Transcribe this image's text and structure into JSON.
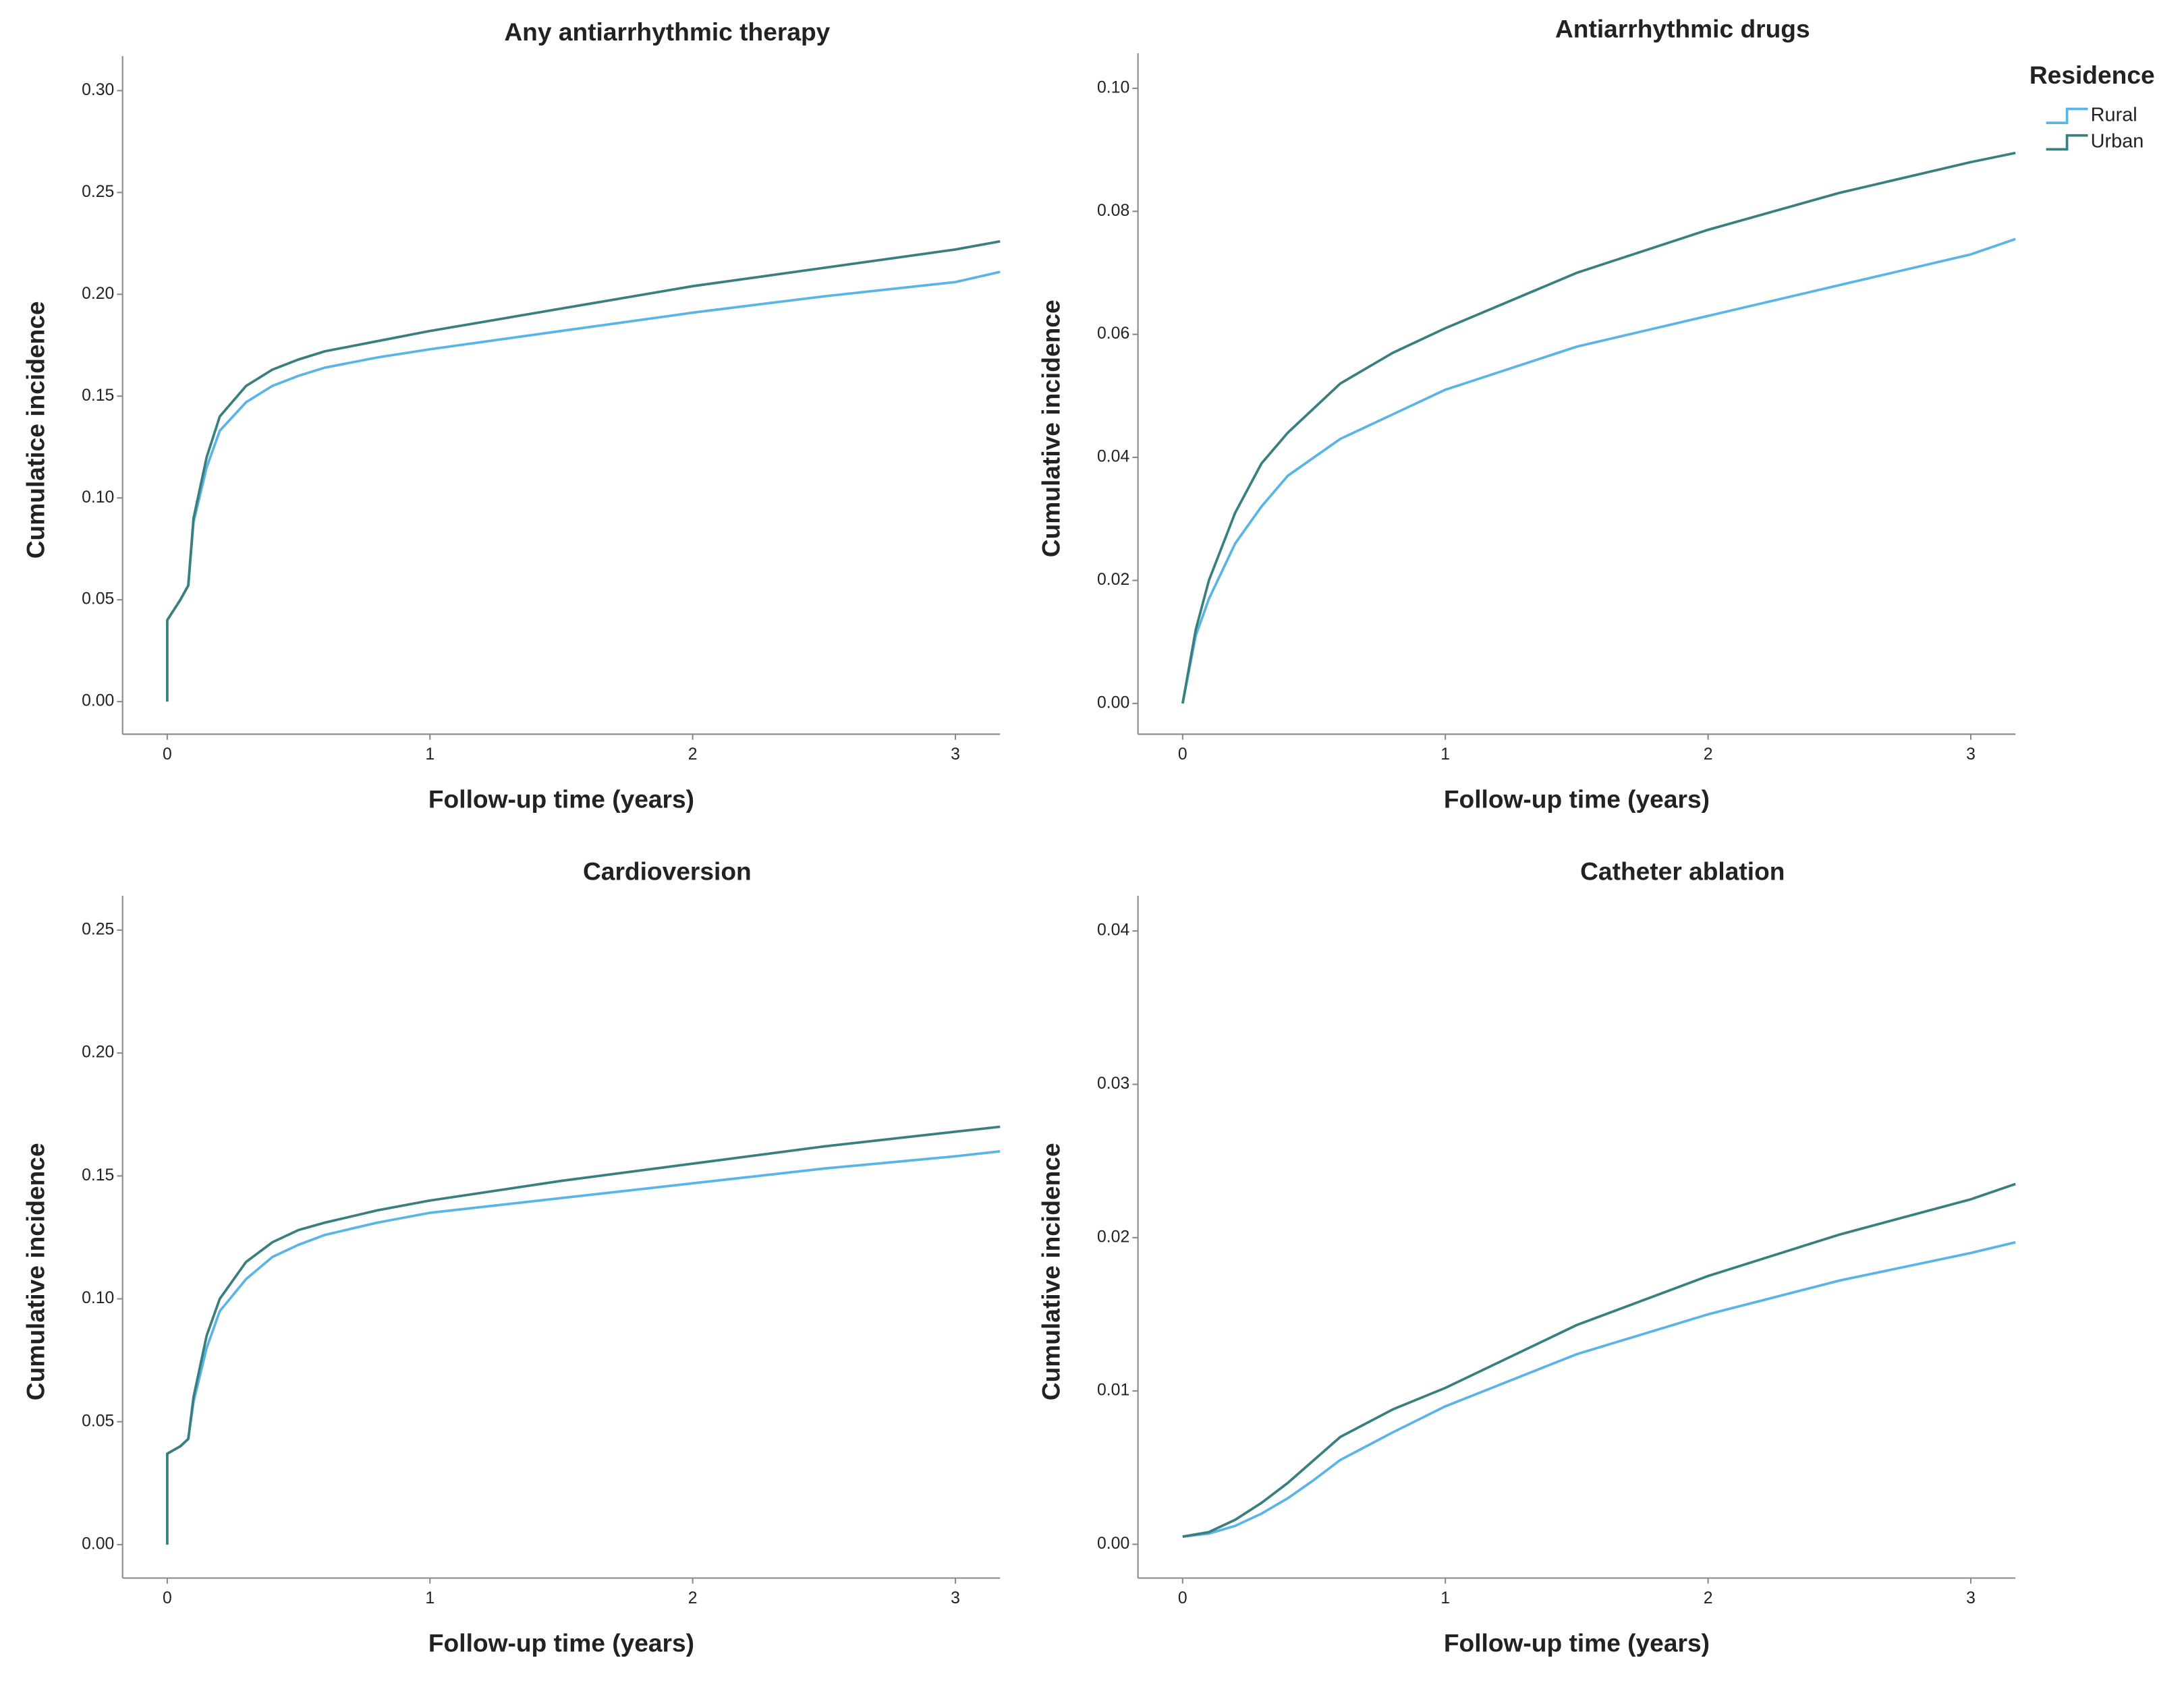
{
  "chart_data": [
    {
      "type": "line",
      "title": "Any antiarrhythmic therapy",
      "x_label": "Follow-up time (years)",
      "y_label": "Cumulatice incidence",
      "x": [
        0,
        0,
        0.05,
        0.08,
        0.1,
        0.15,
        0.2,
        0.3,
        0.4,
        0.5,
        0.6,
        0.8,
        1,
        1.5,
        2,
        2.5,
        3,
        3.17
      ],
      "series": [
        {
          "name": "Rural",
          "color": "#5ab4e5",
          "values": [
            0,
            0.04,
            0.05,
            0.057,
            0.088,
            0.115,
            0.133,
            0.147,
            0.155,
            0.16,
            0.164,
            0.169,
            0.173,
            0.182,
            0.191,
            0.199,
            0.206,
            0.211
          ]
        },
        {
          "name": "Urban",
          "color": "#3a7f80",
          "values": [
            0,
            0.04,
            0.05,
            0.057,
            0.09,
            0.12,
            0.14,
            0.155,
            0.163,
            0.168,
            0.172,
            0.177,
            0.182,
            0.193,
            0.204,
            0.213,
            0.222,
            0.226
          ]
        }
      ],
      "xlim": [
        -0.17,
        3.17
      ],
      "xticks": [
        0,
        1,
        2,
        3
      ],
      "ylim": [
        -0.016,
        0.317
      ],
      "yticks": [
        {
          "value": 0,
          "label": "0.00"
        },
        {
          "value": 0.05,
          "label": "0.05"
        },
        {
          "value": 0.1,
          "label": "0.10"
        },
        {
          "value": 0.15,
          "label": "0.15"
        },
        {
          "value": 0.2,
          "label": "0.20"
        },
        {
          "value": 0.25,
          "label": "0.25"
        },
        {
          "value": 0.3,
          "label": "0.30"
        }
      ]
    },
    {
      "type": "line",
      "title": "Antiarrhythmic drugs",
      "x_label": "Follow-up time (years)",
      "y_label": "Cumulative incidence",
      "x": [
        0,
        0.05,
        0.1,
        0.2,
        0.3,
        0.4,
        0.5,
        0.6,
        0.8,
        1,
        1.5,
        2,
        2.5,
        3,
        3.17
      ],
      "series": [
        {
          "name": "Rural",
          "color": "#5ab4e5",
          "values": [
            0,
            0.011,
            0.017,
            0.026,
            0.032,
            0.037,
            0.04,
            0.043,
            0.047,
            0.051,
            0.058,
            0.063,
            0.068,
            0.073,
            0.0755
          ]
        },
        {
          "name": "Urban",
          "color": "#3a7f80",
          "values": [
            0,
            0.012,
            0.02,
            0.031,
            0.039,
            0.044,
            0.048,
            0.052,
            0.057,
            0.061,
            0.07,
            0.077,
            0.083,
            0.088,
            0.0895
          ]
        }
      ],
      "xlim": [
        -0.17,
        3.17
      ],
      "xticks": [
        0,
        1,
        2,
        3
      ],
      "ylim": [
        -0.005,
        0.1057
      ],
      "yticks": [
        {
          "value": 0,
          "label": "0.00"
        },
        {
          "value": 0.02,
          "label": "0.02"
        },
        {
          "value": 0.04,
          "label": "0.04"
        },
        {
          "value": 0.06,
          "label": "0.06"
        },
        {
          "value": 0.08,
          "label": "0.08"
        },
        {
          "value": 0.1,
          "label": "0.10"
        }
      ],
      "legend": "right",
      "legend_title": "Residence"
    },
    {
      "type": "line",
      "title": "Cardioversion",
      "x_label": "Follow-up time (years)",
      "y_label": "Cumulative incidence",
      "x": [
        0,
        0,
        0.05,
        0.08,
        0.1,
        0.15,
        0.2,
        0.3,
        0.4,
        0.5,
        0.6,
        0.8,
        1,
        1.5,
        2,
        2.5,
        3,
        3.17
      ],
      "series": [
        {
          "name": "Rural",
          "color": "#5ab4e5",
          "values": [
            0,
            0.037,
            0.04,
            0.043,
            0.058,
            0.08,
            0.095,
            0.108,
            0.117,
            0.122,
            0.126,
            0.131,
            0.135,
            0.141,
            0.147,
            0.153,
            0.158,
            0.16
          ]
        },
        {
          "name": "Urban",
          "color": "#3a7f80",
          "values": [
            0,
            0.037,
            0.04,
            0.043,
            0.06,
            0.085,
            0.1,
            0.115,
            0.123,
            0.128,
            0.131,
            0.136,
            0.14,
            0.148,
            0.155,
            0.162,
            0.168,
            0.17
          ]
        }
      ],
      "xlim": [
        -0.17,
        3.17
      ],
      "xticks": [
        0,
        1,
        2,
        3
      ],
      "ylim": [
        -0.0136,
        0.264
      ],
      "yticks": [
        {
          "value": 0,
          "label": "0.00"
        },
        {
          "value": 0.05,
          "label": "0.05"
        },
        {
          "value": 0.1,
          "label": "0.10"
        },
        {
          "value": 0.15,
          "label": "0.15"
        },
        {
          "value": 0.2,
          "label": "0.20"
        },
        {
          "value": 0.25,
          "label": "0.25"
        }
      ]
    },
    {
      "type": "line",
      "title": "Catheter ablation",
      "x_label": "Follow-up time (years)",
      "y_label": "Cumulative incidence",
      "x": [
        0,
        0.1,
        0.2,
        0.3,
        0.4,
        0.5,
        0.6,
        0.8,
        1,
        1.5,
        2,
        2.5,
        3,
        3.17
      ],
      "series": [
        {
          "name": "Rural",
          "color": "#5ab4e5",
          "values": [
            0.0005,
            0.0007,
            0.0012,
            0.002,
            0.003,
            0.0042,
            0.0055,
            0.0073,
            0.009,
            0.0124,
            0.015,
            0.0172,
            0.019,
            0.0197
          ]
        },
        {
          "name": "Urban",
          "color": "#3a7f80",
          "values": [
            0.0005,
            0.0008,
            0.0016,
            0.0027,
            0.004,
            0.0055,
            0.007,
            0.0088,
            0.0102,
            0.0143,
            0.0175,
            0.0202,
            0.0225,
            0.0235
          ]
        }
      ],
      "xlim": [
        -0.17,
        3.17
      ],
      "xticks": [
        0,
        1,
        2,
        3
      ],
      "ylim": [
        -0.0022,
        0.0423
      ],
      "yticks": [
        {
          "value": 0,
          "label": "0.00"
        },
        {
          "value": 0.01,
          "label": "0.01"
        },
        {
          "value": 0.02,
          "label": "0.02"
        },
        {
          "value": 0.03,
          "label": "0.03"
        },
        {
          "value": 0.04,
          "label": "0.04"
        }
      ]
    }
  ]
}
